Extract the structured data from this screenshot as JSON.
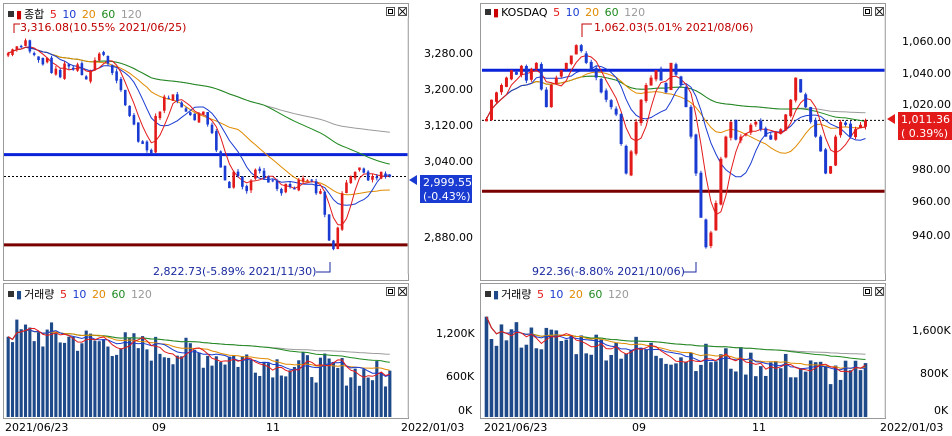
{
  "left": {
    "price_header": {
      "name": "종합",
      "ma": [
        "5",
        "10",
        "20",
        "60",
        "120"
      ]
    },
    "volume_header": {
      "name": "거래량",
      "ma": [
        "5",
        "10",
        "20",
        "60",
        "120"
      ]
    },
    "high_annotation": "3,316.08(10.55% 2021/06/25)",
    "low_annotation": "2,822.73(-5.89% 2021/11/30)",
    "current_price": "2,999.55",
    "current_change": "(-0.43%)",
    "price_ticks": [
      "3,280.00",
      "3,200.00",
      "3,120.00",
      "3,040.00",
      "2,880.00"
    ],
    "volume_ticks": [
      "1,200K",
      "600K",
      "0K"
    ],
    "x_labels": [
      "2021/06/23",
      "09",
      "11",
      "2022/01/03"
    ]
  },
  "right": {
    "price_header": {
      "name": "KOSDAQ",
      "ma": [
        "5",
        "10",
        "20",
        "60",
        "120"
      ]
    },
    "volume_header": {
      "name": "거래량",
      "ma": [
        "5",
        "10",
        "20",
        "60",
        "120"
      ]
    },
    "high_annotation": "1,062.03(5.01% 2021/08/06)",
    "low_annotation": "922.36(-8.80% 2021/10/06)",
    "current_price": "1,011.36",
    "current_change": "( 0.39%)",
    "price_ticks": [
      "1,060.00",
      "1,040.00",
      "1,020.00",
      "980.00",
      "960.00",
      "940.00"
    ],
    "volume_ticks": [
      "1,600K",
      "800K",
      "0K"
    ],
    "x_labels": [
      "2021/06/23",
      "09",
      "11",
      "2022/01/03"
    ]
  },
  "colors": {
    "ma5": "#e31a1a",
    "ma10": "#1a3bd1",
    "ma20": "#e08a00",
    "ma60": "#1f8a1f",
    "ma120": "#9a9a9a",
    "up": "#e31a1a",
    "down": "#1a3bd1",
    "volume": "#1f4a8a",
    "line_blue": "#0a22d8",
    "line_red": "#7a0000"
  },
  "chart_data": [
    {
      "type": "candlestick",
      "title": "종합",
      "ylim": [
        2800,
        3340
      ],
      "x_range": [
        "2021/06/23",
        "2022/01/03"
      ],
      "closes": [
        3286,
        3295,
        3302,
        3300,
        3316,
        3290,
        3282,
        3270,
        3260,
        3275,
        3240,
        3250,
        3230,
        3262,
        3255,
        3248,
        3260,
        3235,
        3225,
        3245,
        3270,
        3285,
        3282,
        3262,
        3240,
        3222,
        3200,
        3165,
        3140,
        3120,
        3080,
        3075,
        3060,
        3052,
        3140,
        3150,
        3185,
        3180,
        3190,
        3175,
        3160,
        3150,
        3142,
        3130,
        3145,
        3150,
        3120,
        3100,
        3060,
        3020,
        2990,
        2972,
        3010,
        3000,
        2975,
        2965,
        2990,
        3015,
        3012,
        2995,
        2985,
        2990,
        2970,
        2960,
        2982,
        2975,
        2970,
        2992,
        2995,
        2990,
        2990,
        2960,
        2965,
        2910,
        2850,
        2830,
        2880,
        2960,
        2985,
        3000,
        3010,
        3020,
        3008,
        2990,
        3000,
        2995,
        3010,
        2998,
        2999
      ],
      "horizontal_lines": [
        3050,
        2840
      ]
    },
    {
      "type": "candlestick",
      "title": "KOSDAQ",
      "ylim": [
        915,
        1075
      ],
      "x_range": [
        "2021/06/23",
        "2022/01/03"
      ],
      "closes": [
        1012,
        1025,
        1030,
        1035,
        1040,
        1045,
        1042,
        1048,
        1038,
        1046,
        1050,
        1032,
        1020,
        1035,
        1040,
        1045,
        1050,
        1055,
        1062,
        1058,
        1050,
        1045,
        1040,
        1030,
        1025,
        1020,
        1015,
        995,
        975,
        990,
        1010,
        1025,
        1035,
        1040,
        1045,
        1038,
        1030,
        1050,
        1042,
        1035,
        1020,
        1000,
        975,
        945,
        925,
        935,
        955,
        985,
        1000,
        1010,
        998,
        1000,
        1002,
        1008,
        1010,
        1005,
        1000,
        998,
        1003,
        1005,
        1015,
        1025,
        1040,
        1030,
        1020,
        1010,
        1000,
        990,
        975,
        980,
        1000,
        1010,
        1008,
        1000,
        1005,
        1008,
        1011
      ],
      "horizontal_lines": [
        1045,
        963
      ]
    }
  ]
}
